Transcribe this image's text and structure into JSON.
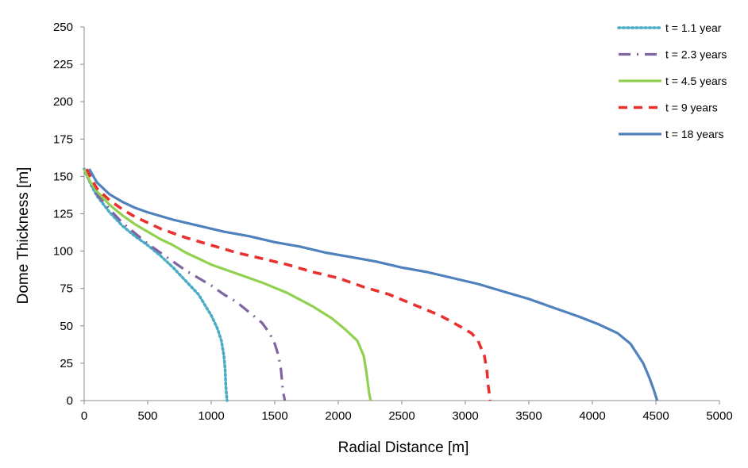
{
  "chart_data": {
    "type": "line",
    "title": "",
    "xlabel": "Radial Distance [m]",
    "ylabel": "Dome Thickness [m]",
    "xlim": [
      0,
      5000
    ],
    "ylim": [
      0,
      250
    ],
    "xticks": [
      "0",
      "500",
      "1000",
      "1500",
      "2000",
      "2500",
      "3000",
      "3500",
      "4000",
      "4500",
      "5000"
    ],
    "yticks": [
      "0",
      "25",
      "50",
      "75",
      "100",
      "125",
      "150",
      "175",
      "200",
      "225",
      "250"
    ],
    "grid": false,
    "legend_position": "top-right",
    "series": [
      {
        "name": "t = 1.1 year",
        "color": "#4BACC6",
        "dash": "dotted",
        "points": [
          [
            0,
            155
          ],
          [
            50,
            145
          ],
          [
            100,
            137
          ],
          [
            200,
            126
          ],
          [
            300,
            117
          ],
          [
            400,
            110
          ],
          [
            500,
            104
          ],
          [
            600,
            97
          ],
          [
            700,
            89
          ],
          [
            800,
            80
          ],
          [
            900,
            71
          ],
          [
            950,
            64
          ],
          [
            1000,
            57
          ],
          [
            1050,
            48
          ],
          [
            1080,
            40
          ],
          [
            1100,
            30
          ],
          [
            1110,
            20
          ],
          [
            1115,
            10
          ],
          [
            1120,
            4
          ],
          [
            1125,
            0
          ]
        ]
      },
      {
        "name": "t = 2.3 years",
        "color": "#8064A2",
        "dash": "dashdot",
        "points": [
          [
            0,
            155
          ],
          [
            50,
            145
          ],
          [
            100,
            138
          ],
          [
            200,
            128
          ],
          [
            300,
            119
          ],
          [
            400,
            112
          ],
          [
            500,
            105
          ],
          [
            600,
            99
          ],
          [
            700,
            93
          ],
          [
            800,
            87
          ],
          [
            900,
            82
          ],
          [
            1000,
            77
          ],
          [
            1100,
            71
          ],
          [
            1200,
            66
          ],
          [
            1300,
            59
          ],
          [
            1400,
            52
          ],
          [
            1460,
            45
          ],
          [
            1500,
            38
          ],
          [
            1530,
            30
          ],
          [
            1550,
            20
          ],
          [
            1560,
            10
          ],
          [
            1570,
            4
          ],
          [
            1580,
            0
          ]
        ]
      },
      {
        "name": "t = 4.5 years",
        "color": "#92D050",
        "dash": "solid",
        "points": [
          [
            0,
            155
          ],
          [
            50,
            146
          ],
          [
            100,
            140
          ],
          [
            200,
            131
          ],
          [
            300,
            124
          ],
          [
            400,
            118
          ],
          [
            500,
            113
          ],
          [
            600,
            108
          ],
          [
            700,
            104
          ],
          [
            800,
            99
          ],
          [
            900,
            95
          ],
          [
            1000,
            91
          ],
          [
            1200,
            85
          ],
          [
            1400,
            79
          ],
          [
            1600,
            72
          ],
          [
            1800,
            63
          ],
          [
            1950,
            55
          ],
          [
            2050,
            48
          ],
          [
            2150,
            40
          ],
          [
            2200,
            30
          ],
          [
            2220,
            20
          ],
          [
            2235,
            10
          ],
          [
            2245,
            4
          ],
          [
            2255,
            0
          ]
        ]
      },
      {
        "name": "t = 9 years",
        "color": "#E8312F",
        "dash": "dashed",
        "points": [
          [
            20,
            155
          ],
          [
            60,
            148
          ],
          [
            100,
            142
          ],
          [
            200,
            134
          ],
          [
            300,
            128
          ],
          [
            400,
            123
          ],
          [
            500,
            119
          ],
          [
            600,
            115
          ],
          [
            800,
            109
          ],
          [
            1000,
            104
          ],
          [
            1200,
            99
          ],
          [
            1400,
            95
          ],
          [
            1600,
            91
          ],
          [
            1800,
            86
          ],
          [
            2000,
            82
          ],
          [
            2200,
            76
          ],
          [
            2400,
            71
          ],
          [
            2600,
            64
          ],
          [
            2800,
            57
          ],
          [
            2950,
            50
          ],
          [
            3050,
            45
          ],
          [
            3100,
            40
          ],
          [
            3150,
            30
          ],
          [
            3170,
            20
          ],
          [
            3180,
            10
          ],
          [
            3190,
            4
          ],
          [
            3195,
            0
          ]
        ]
      },
      {
        "name": "t = 18 years",
        "color": "#4F81BD",
        "dash": "solid",
        "points": [
          [
            40,
            155
          ],
          [
            100,
            146
          ],
          [
            200,
            138
          ],
          [
            300,
            133
          ],
          [
            400,
            129
          ],
          [
            500,
            126
          ],
          [
            700,
            121
          ],
          [
            900,
            117
          ],
          [
            1100,
            113
          ],
          [
            1300,
            110
          ],
          [
            1500,
            106
          ],
          [
            1700,
            103
          ],
          [
            1900,
            99
          ],
          [
            2100,
            96
          ],
          [
            2300,
            93
          ],
          [
            2500,
            89
          ],
          [
            2700,
            86
          ],
          [
            2900,
            82
          ],
          [
            3100,
            78
          ],
          [
            3300,
            73
          ],
          [
            3500,
            68
          ],
          [
            3700,
            62
          ],
          [
            3900,
            56
          ],
          [
            4050,
            51
          ],
          [
            4200,
            45
          ],
          [
            4300,
            38
          ],
          [
            4400,
            25
          ],
          [
            4450,
            15
          ],
          [
            4480,
            8
          ],
          [
            4510,
            0
          ]
        ]
      }
    ]
  }
}
